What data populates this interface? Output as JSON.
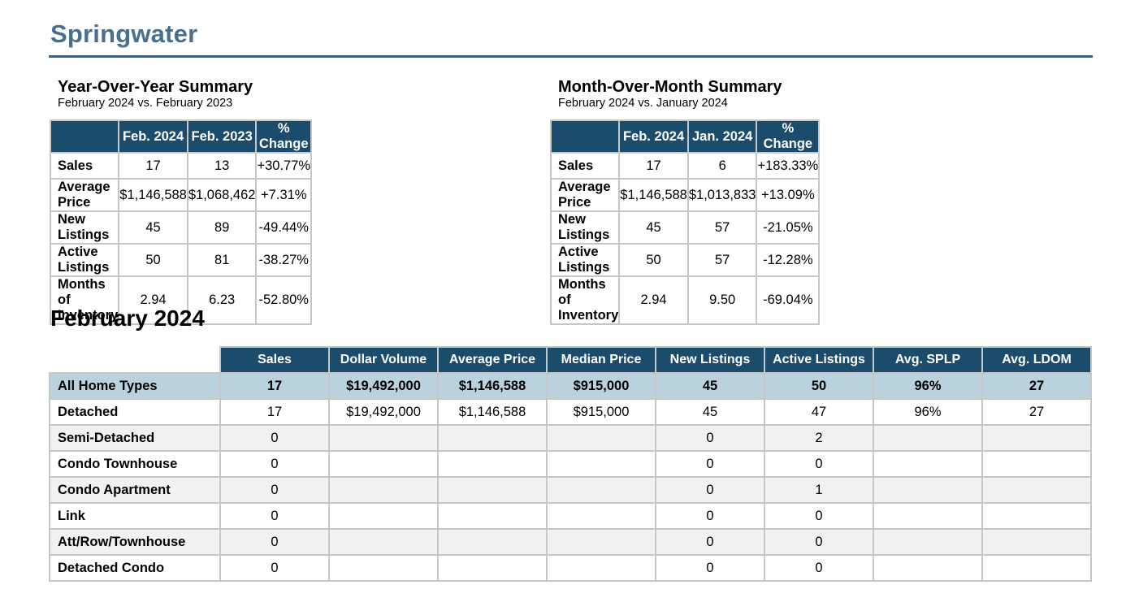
{
  "title": "Springwater",
  "yoy": {
    "heading": "Year-Over-Year Summary",
    "subtitle": "February 2024 vs. February 2023",
    "columns": [
      "",
      "Feb. 2024",
      "Feb. 2023",
      "% Change"
    ],
    "rows": [
      [
        "Sales",
        "17",
        "13",
        "+30.77%"
      ],
      [
        "Average Price",
        "$1,146,588",
        "$1,068,462",
        "+7.31%"
      ],
      [
        "New Listings",
        "45",
        "89",
        "-49.44%"
      ],
      [
        "Active Listings",
        "50",
        "81",
        "-38.27%"
      ],
      [
        "Months of Inventory",
        "2.94",
        "6.23",
        "-52.80%"
      ]
    ]
  },
  "mom": {
    "heading": "Month-Over-Month Summary",
    "subtitle": "February 2024 vs. January 2024",
    "columns": [
      "",
      "Feb. 2024",
      "Jan. 2024",
      "% Change"
    ],
    "rows": [
      [
        "Sales",
        "17",
        "6",
        "+183.33%"
      ],
      [
        "Average Price",
        "$1,146,588",
        "$1,013,833",
        "+13.09%"
      ],
      [
        "New Listings",
        "45",
        "57",
        "-21.05%"
      ],
      [
        "Active Listings",
        "50",
        "57",
        "-12.28%"
      ],
      [
        "Months of Inventory",
        "2.94",
        "9.50",
        "-69.04%"
      ]
    ]
  },
  "month": {
    "heading": "February 2024",
    "columns": [
      "",
      "Sales",
      "Dollar Volume",
      "Average Price",
      "Median Price",
      "New Listings",
      "Active Listings",
      "Avg. SPLP",
      "Avg. LDOM"
    ],
    "rows": [
      [
        "All Home Types",
        "17",
        "$19,492,000",
        "$1,146,588",
        "$915,000",
        "45",
        "50",
        "96%",
        "27"
      ],
      [
        "Detached",
        "17",
        "$19,492,000",
        "$1,146,588",
        "$915,000",
        "45",
        "47",
        "96%",
        "27"
      ],
      [
        "Semi-Detached",
        "0",
        "",
        "",
        "",
        "0",
        "2",
        "",
        ""
      ],
      [
        "Condo Townhouse",
        "0",
        "",
        "",
        "",
        "0",
        "0",
        "",
        ""
      ],
      [
        "Condo Apartment",
        "0",
        "",
        "",
        "",
        "0",
        "1",
        "",
        ""
      ],
      [
        "Link",
        "0",
        "",
        "",
        "",
        "0",
        "0",
        "",
        ""
      ],
      [
        "Att/Row/Townhouse",
        "0",
        "",
        "",
        "",
        "0",
        "0",
        "",
        ""
      ],
      [
        "Detached Condo",
        "0",
        "",
        "",
        "",
        "0",
        "0",
        "",
        ""
      ]
    ]
  }
}
